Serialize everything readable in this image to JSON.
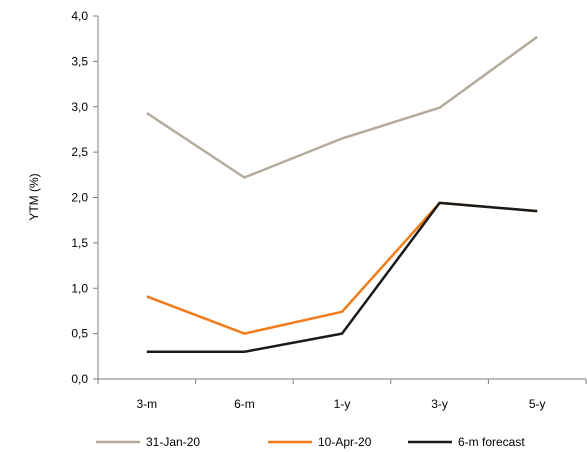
{
  "chart_data": {
    "type": "line",
    "title": "",
    "xlabel": "",
    "ylabel": "YTM (%)",
    "categories": [
      "3-m",
      "6-m",
      "1-y",
      "3-y",
      "5-y"
    ],
    "ylim": [
      0,
      4
    ],
    "yticks": [
      "0,0",
      "0,5",
      "1,0",
      "1,5",
      "2,0",
      "2,5",
      "3,0",
      "3,5",
      "4,0"
    ],
    "grid": false,
    "legend_position": "bottom",
    "series": [
      {
        "name": "31-Jan-20",
        "color": "#b4ab9b",
        "values": [
          2.93,
          2.22,
          2.65,
          2.99,
          3.77
        ]
      },
      {
        "name": "10-Apr-20",
        "color": "#f07c1a",
        "values": [
          0.91,
          0.5,
          0.74,
          1.94,
          1.85
        ]
      },
      {
        "name": "6-m forecast",
        "color": "#1a1a1a",
        "values": [
          0.3,
          0.3,
          0.5,
          1.94,
          1.85
        ]
      }
    ]
  }
}
